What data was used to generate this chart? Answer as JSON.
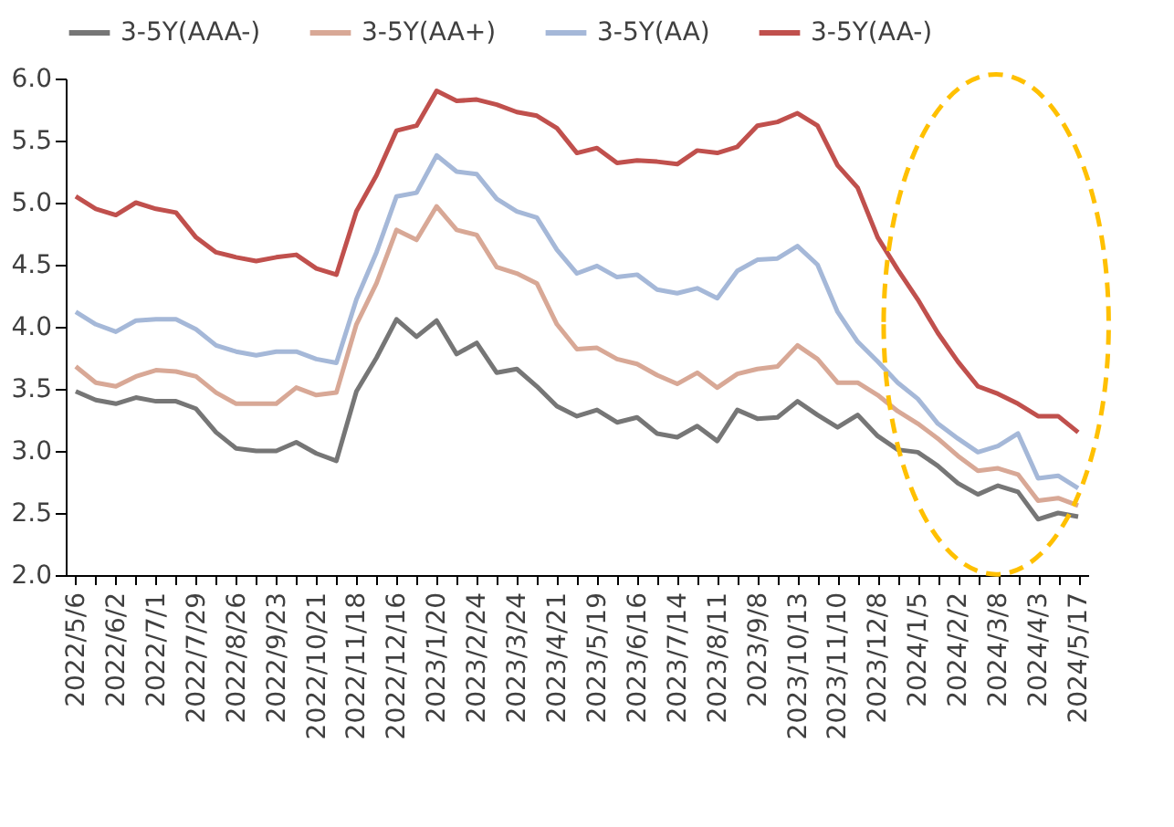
{
  "chart_data": {
    "type": "line",
    "categories": [
      "2022/5/6",
      null,
      "2022/6/2",
      null,
      "2022/7/1",
      null,
      "2022/7/29",
      null,
      "2022/8/26",
      null,
      "2022/9/23",
      null,
      "2022/10/21",
      null,
      "2022/11/18",
      null,
      "2022/12/16",
      null,
      "2023/1/20",
      null,
      "2023/2/24",
      null,
      "2023/3/24",
      null,
      "2023/4/21",
      null,
      "2023/5/19",
      null,
      "2023/6/16",
      null,
      "2023/7/14",
      null,
      "2023/8/11",
      null,
      "2023/9/8",
      null,
      "2023/10/13",
      null,
      "2023/11/10",
      null,
      "2023/12/8",
      null,
      "2024/1/5",
      null,
      "2024/2/2",
      null,
      "2024/3/8",
      null,
      "2024/4/3",
      null,
      "2024/5/17"
    ],
    "series": [
      {
        "name": "3-5Y(AAA-)",
        "color": "#767676",
        "values": [
          3.48,
          3.41,
          3.38,
          3.43,
          3.4,
          3.4,
          3.34,
          3.15,
          3.02,
          3.0,
          3.0,
          3.07,
          2.98,
          2.92,
          3.48,
          3.75,
          4.06,
          3.92,
          4.05,
          3.78,
          3.87,
          3.63,
          3.66,
          3.52,
          3.36,
          3.28,
          3.33,
          3.23,
          3.27,
          3.14,
          3.11,
          3.2,
          3.08,
          3.33,
          3.26,
          3.27,
          3.4,
          3.29,
          3.19,
          3.29,
          3.12,
          3.01,
          2.99,
          2.88,
          2.74,
          2.65,
          2.72,
          2.67,
          2.45,
          2.5,
          2.47
        ]
      },
      {
        "name": "3-5Y(AA+)",
        "color": "#d8a896",
        "values": [
          3.68,
          3.55,
          3.52,
          3.6,
          3.65,
          3.64,
          3.6,
          3.47,
          3.38,
          3.38,
          3.38,
          3.51,
          3.45,
          3.47,
          4.02,
          4.35,
          4.78,
          4.7,
          4.97,
          4.78,
          4.74,
          4.48,
          4.43,
          4.35,
          4.02,
          3.82,
          3.83,
          3.74,
          3.7,
          3.61,
          3.54,
          3.63,
          3.51,
          3.62,
          3.66,
          3.68,
          3.85,
          3.74,
          3.55,
          3.55,
          3.45,
          3.32,
          3.22,
          3.1,
          2.96,
          2.84,
          2.86,
          2.81,
          2.6,
          2.62,
          2.56
        ]
      },
      {
        "name": "3-5Y(AA)",
        "color": "#a5b8d8",
        "values": [
          4.12,
          4.02,
          3.96,
          4.05,
          4.06,
          4.06,
          3.98,
          3.85,
          3.8,
          3.77,
          3.8,
          3.8,
          3.74,
          3.71,
          4.22,
          4.6,
          5.05,
          5.08,
          5.38,
          5.25,
          5.23,
          5.03,
          4.93,
          4.88,
          4.62,
          4.43,
          4.49,
          4.4,
          4.42,
          4.3,
          4.27,
          4.31,
          4.23,
          4.45,
          4.54,
          4.55,
          4.65,
          4.5,
          4.12,
          3.88,
          3.72,
          3.55,
          3.42,
          3.22,
          3.1,
          2.99,
          3.04,
          3.14,
          2.78,
          2.8,
          2.7
        ]
      },
      {
        "name": "3-5Y(AA-)",
        "color": "#c0504d",
        "values": [
          5.05,
          4.95,
          4.9,
          5.0,
          4.95,
          4.92,
          4.72,
          4.6,
          4.56,
          4.53,
          4.56,
          4.58,
          4.47,
          4.42,
          4.93,
          5.22,
          5.58,
          5.62,
          5.9,
          5.82,
          5.83,
          5.79,
          5.73,
          5.7,
          5.6,
          5.4,
          5.44,
          5.32,
          5.34,
          5.33,
          5.31,
          5.42,
          5.4,
          5.45,
          5.62,
          5.65,
          5.72,
          5.62,
          5.3,
          5.12,
          4.72,
          4.46,
          4.22,
          3.95,
          3.72,
          3.52,
          3.46,
          3.38,
          3.28,
          3.28,
          3.15
        ]
      }
    ],
    "ylim": [
      2.0,
      6.0
    ],
    "yticks": [
      {
        "value": 2.0,
        "label": "2.0"
      },
      2.5,
      {
        "value": 3.0,
        "label": "3.0"
      },
      3.5,
      {
        "value": 4.0,
        "label": "4.0"
      },
      4.5,
      {
        "value": 5.0,
        "label": "5.0"
      },
      5.5,
      {
        "value": 6.0,
        "label": "6.0"
      }
    ],
    "grid": false,
    "legend": "top",
    "marker": "none",
    "line_style": "solid"
  }
}
